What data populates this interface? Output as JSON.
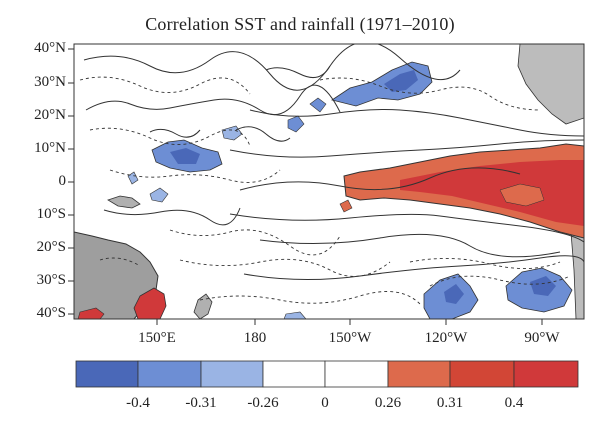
{
  "title": "Correlation SST and rainfall (1971–2010)",
  "lat_labels": [
    "40°N",
    "30°N",
    "20°N",
    "10°N",
    "0",
    "10°S",
    "20°S",
    "30°S",
    "40°S"
  ],
  "lon_labels": [
    "150°E",
    "180",
    "150°W",
    "120°W",
    "90°W"
  ],
  "colorbar": {
    "labels": [
      "-0.4",
      "-0.31",
      "-0.26",
      "0",
      "0.26",
      "0.31",
      "0.4"
    ],
    "colors": [
      "#4a68b8",
      "#6d8ed4",
      "#9ab4e4",
      "#ffffff",
      "#ffffff",
      "#dd6a4c",
      "#d24636",
      "#d0393a"
    ]
  },
  "colors": {
    "strong_negative": "#4a68b8",
    "negative": "#6d8ed4",
    "weak_negative": "#9ab4e4",
    "positive": "#dd6a4c",
    "strong_positive": "#d0393a",
    "land": "#9e9e9e"
  }
}
